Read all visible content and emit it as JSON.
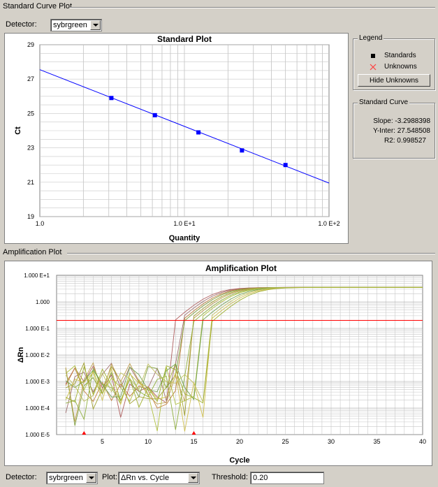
{
  "standard_panel": {
    "title": "Standard Curve Plot",
    "detector_label": "Detector:",
    "detector_value": "sybrgreen"
  },
  "legend": {
    "title": "Legend",
    "standards_label": "Standards",
    "unknowns_label": "Unknowns",
    "hide_button": "Hide Unknowns"
  },
  "standard_curve": {
    "title": "Standard Curve",
    "slope": "Slope: -3.2988398",
    "intercept": "Y-Inter: 27.548508",
    "r2": "R2: 0.998527"
  },
  "amplification_panel": {
    "title": "Amplification Plot",
    "detector_label": "Detector:",
    "detector_value": "sybrgreen",
    "plot_label": "Plot:",
    "plot_value": "ΔRn vs. Cycle",
    "threshold_label": "Threshold:",
    "threshold_value": "0.20"
  },
  "chart_data": [
    {
      "type": "scatter",
      "title": "Standard Plot",
      "xlabel": "Quantity",
      "ylabel": "Ct",
      "x_scale": "log",
      "xlim": [
        1,
        100
      ],
      "ylim": [
        19,
        29
      ],
      "x_ticks": [
        "1.0",
        "1.0 E+1",
        "1.0 E+2"
      ],
      "y_ticks": [
        "19",
        "21",
        "23",
        "25",
        "27",
        "29"
      ],
      "grid": true,
      "series": [
        {
          "name": "Standards",
          "x": [
            3.125,
            6.25,
            12.5,
            25,
            50
          ],
          "y": [
            25.9,
            24.9,
            23.9,
            22.85,
            22.0
          ]
        }
      ],
      "fit_line": {
        "slope": -3.2988398,
        "intercept": 27.548508
      },
      "colors": {
        "points": "#0000ff",
        "line": "#0000ff"
      }
    },
    {
      "type": "line",
      "title": "Amplification Plot",
      "xlabel": "Cycle",
      "ylabel": "ΔRn",
      "y_scale": "log",
      "xlim": [
        0,
        40
      ],
      "ylim": [
        1e-05,
        10
      ],
      "x_ticks": [
        "5",
        "10",
        "15",
        "20",
        "25",
        "30",
        "35",
        "40"
      ],
      "y_ticks": [
        "1.000 E+1",
        "1.000",
        "1.000 E-1",
        "1.000 E-2",
        "1.000 E-3",
        "1.000 E-4",
        "1.000 E-5"
      ],
      "threshold": 0.2,
      "grid": true,
      "markers_at_cycle": [
        3,
        15
      ],
      "series": [
        {
          "ct": 16.8,
          "color": "#b06060"
        },
        {
          "ct": 17.2,
          "color": "#a07070"
        },
        {
          "ct": 17.6,
          "color": "#c08040"
        },
        {
          "ct": 17.9,
          "color": "#80a040"
        },
        {
          "ct": 18.3,
          "color": "#a0a030"
        },
        {
          "ct": 18.6,
          "color": "#c0a050"
        },
        {
          "ct": 19.0,
          "color": "#90b040"
        },
        {
          "ct": 19.3,
          "color": "#b0c040"
        },
        {
          "ct": 19.8,
          "color": "#70a050"
        },
        {
          "ct": 20.2,
          "color": "#c0c060"
        },
        {
          "ct": 20.6,
          "color": "#d0c050"
        },
        {
          "ct": 21.0,
          "color": "#a0b030"
        }
      ],
      "colors": {
        "threshold": "#ff0000"
      }
    }
  ]
}
